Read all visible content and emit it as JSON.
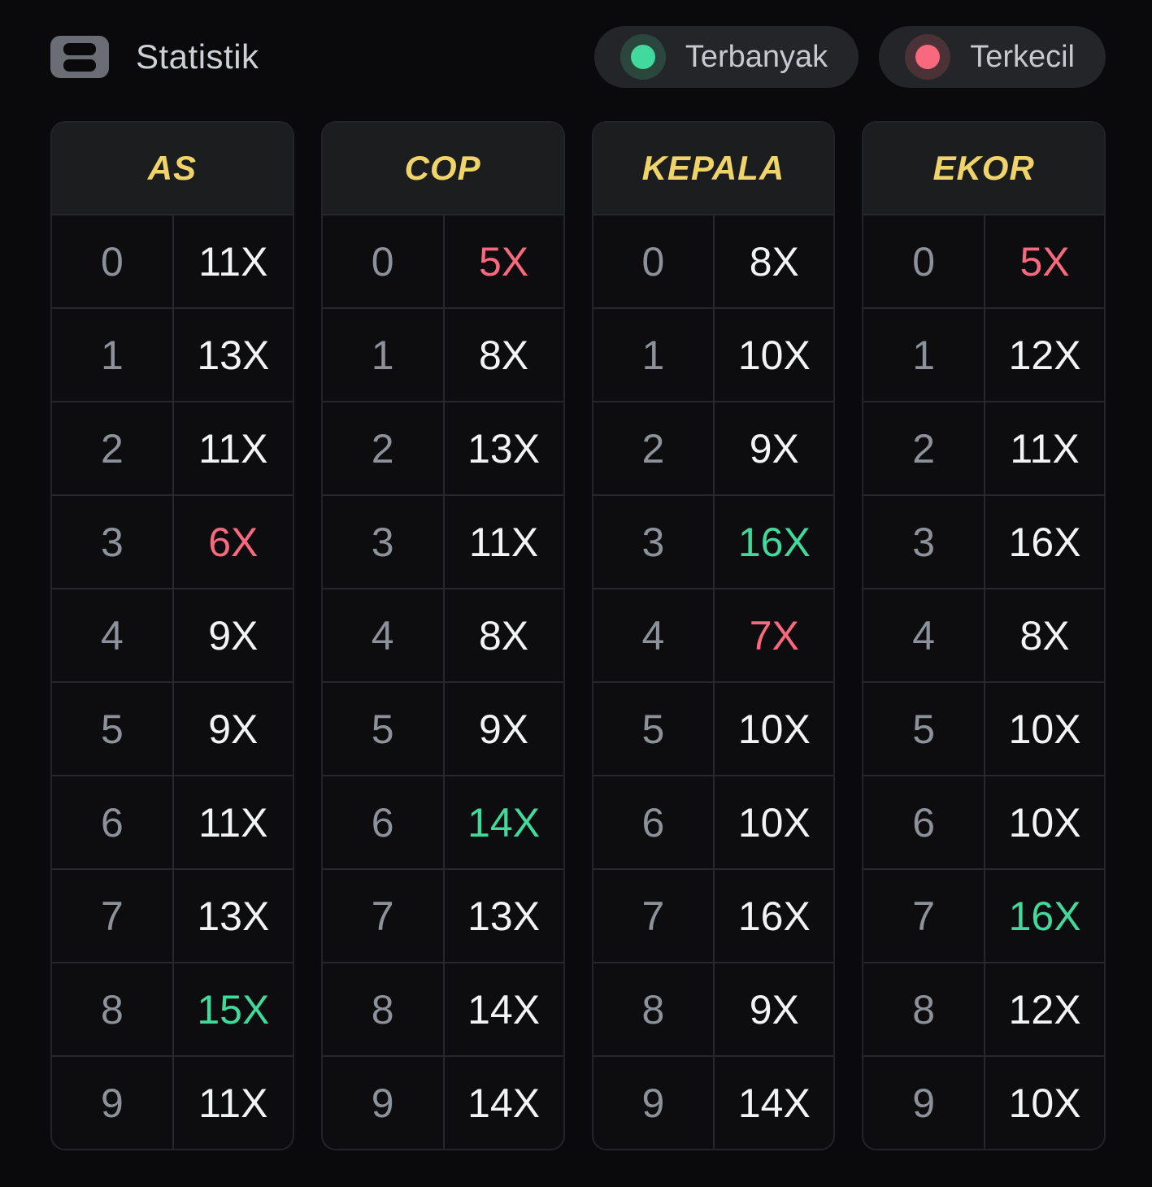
{
  "header": {
    "title": "Statistik",
    "icon": "rows-icon"
  },
  "legend": [
    {
      "label": "Terbanyak",
      "type": "most",
      "dot_color": "#41D99C",
      "ring_color": "#2B473D"
    },
    {
      "label": "Terkecil",
      "type": "least",
      "dot_color": "#F8697E",
      "ring_color": "#4A3237"
    }
  ],
  "colors": {
    "accent_yellow": "#EFD36B",
    "most_green": "#41D99C",
    "least_red": "#F8697E",
    "ring_most": "#2B473D",
    "ring_least": "#4A3237",
    "text_white": "#F2F3F5",
    "text_gray": "#8D929A",
    "pill_bg": "#232528",
    "header_bg": "#1C1D1F",
    "table_bg": "#0D0D0F",
    "bg": "#0A0A0C"
  },
  "tables": [
    {
      "title": "AS",
      "rows": [
        {
          "digit": "0",
          "value": "11X",
          "mark": "none"
        },
        {
          "digit": "1",
          "value": "13X",
          "mark": "none"
        },
        {
          "digit": "2",
          "value": "11X",
          "mark": "none"
        },
        {
          "digit": "3",
          "value": "6X",
          "mark": "least"
        },
        {
          "digit": "4",
          "value": "9X",
          "mark": "none"
        },
        {
          "digit": "5",
          "value": "9X",
          "mark": "none"
        },
        {
          "digit": "6",
          "value": "11X",
          "mark": "none"
        },
        {
          "digit": "7",
          "value": "13X",
          "mark": "none"
        },
        {
          "digit": "8",
          "value": "15X",
          "mark": "most"
        },
        {
          "digit": "9",
          "value": "11X",
          "mark": "none"
        }
      ]
    },
    {
      "title": "COP",
      "rows": [
        {
          "digit": "0",
          "value": "5X",
          "mark": "least"
        },
        {
          "digit": "1",
          "value": "8X",
          "mark": "none"
        },
        {
          "digit": "2",
          "value": "13X",
          "mark": "none"
        },
        {
          "digit": "3",
          "value": "11X",
          "mark": "none"
        },
        {
          "digit": "4",
          "value": "8X",
          "mark": "none"
        },
        {
          "digit": "5",
          "value": "9X",
          "mark": "none"
        },
        {
          "digit": "6",
          "value": "14X",
          "mark": "most"
        },
        {
          "digit": "7",
          "value": "13X",
          "mark": "none"
        },
        {
          "digit": "8",
          "value": "14X",
          "mark": "none"
        },
        {
          "digit": "9",
          "value": "14X",
          "mark": "none"
        }
      ]
    },
    {
      "title": "KEPALA",
      "rows": [
        {
          "digit": "0",
          "value": "8X",
          "mark": "none"
        },
        {
          "digit": "1",
          "value": "10X",
          "mark": "none"
        },
        {
          "digit": "2",
          "value": "9X",
          "mark": "none"
        },
        {
          "digit": "3",
          "value": "16X",
          "mark": "most"
        },
        {
          "digit": "4",
          "value": "7X",
          "mark": "least"
        },
        {
          "digit": "5",
          "value": "10X",
          "mark": "none"
        },
        {
          "digit": "6",
          "value": "10X",
          "mark": "none"
        },
        {
          "digit": "7",
          "value": "16X",
          "mark": "none"
        },
        {
          "digit": "8",
          "value": "9X",
          "mark": "none"
        },
        {
          "digit": "9",
          "value": "14X",
          "mark": "none"
        }
      ]
    },
    {
      "title": "EKOR",
      "rows": [
        {
          "digit": "0",
          "value": "5X",
          "mark": "least"
        },
        {
          "digit": "1",
          "value": "12X",
          "mark": "none"
        },
        {
          "digit": "2",
          "value": "11X",
          "mark": "none"
        },
        {
          "digit": "3",
          "value": "16X",
          "mark": "none"
        },
        {
          "digit": "4",
          "value": "8X",
          "mark": "none"
        },
        {
          "digit": "5",
          "value": "10X",
          "mark": "none"
        },
        {
          "digit": "6",
          "value": "10X",
          "mark": "none"
        },
        {
          "digit": "7",
          "value": "16X",
          "mark": "most"
        },
        {
          "digit": "8",
          "value": "12X",
          "mark": "none"
        },
        {
          "digit": "9",
          "value": "10X",
          "mark": "none"
        }
      ]
    }
  ]
}
